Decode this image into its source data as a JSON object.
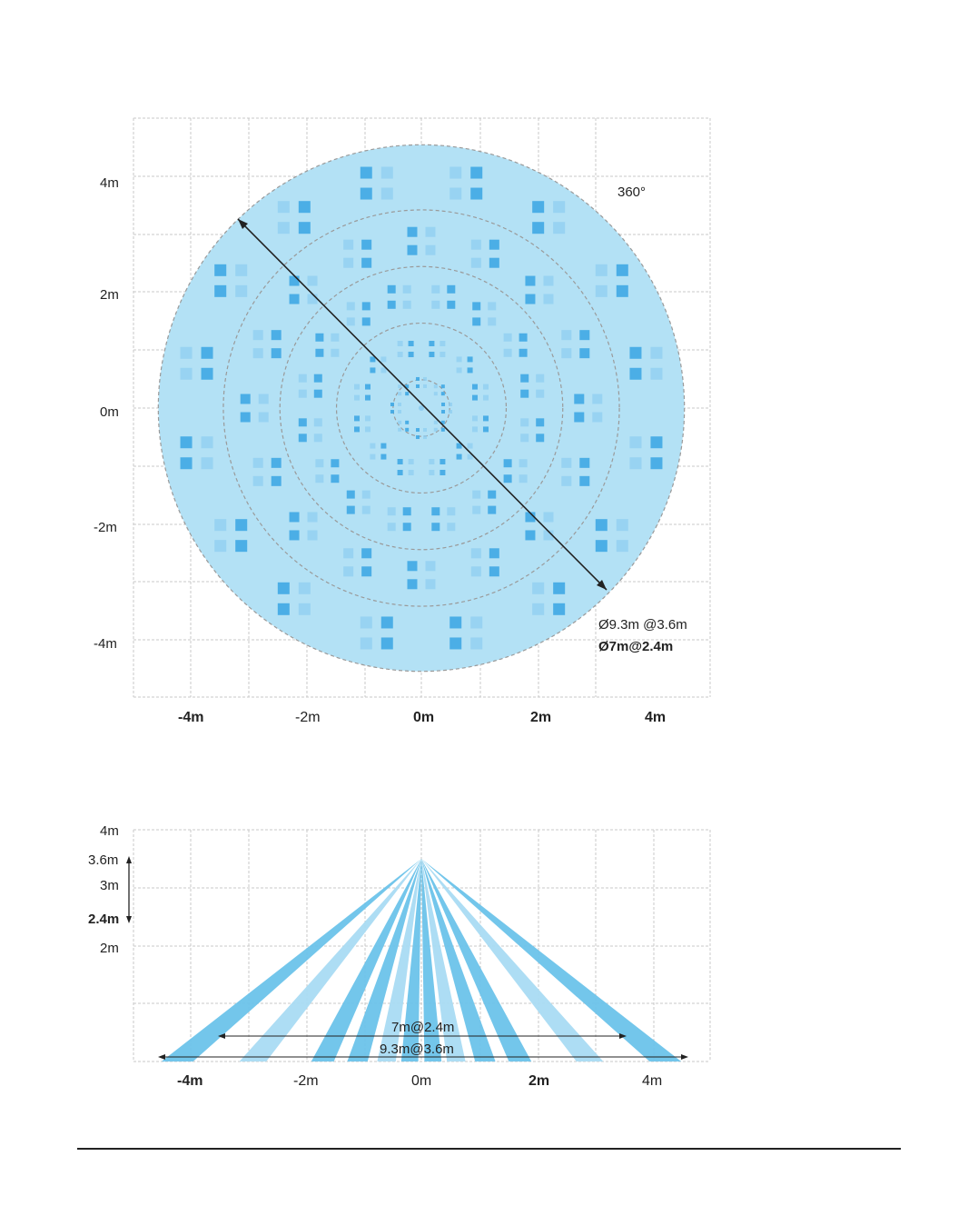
{
  "top_view": {
    "y_labels": [
      "4m",
      "2m",
      "0m",
      "-2m",
      "-4m"
    ],
    "x_labels": [
      "-4m",
      "-2m",
      "0m",
      "2m",
      "4m"
    ],
    "angle_label": "360°",
    "spec_line_1": "Ø9.3m @3.6m",
    "spec_line_2": "Ø7m@2.4m",
    "coverage_diameter_m": 9.3,
    "ring_diameters_m": [
      7,
      5,
      3,
      1
    ],
    "colors": {
      "coverage": "#b3e1f5",
      "zone_dark": "#3fa9e4",
      "zone_light": "#8fcdf0",
      "grid": "#c8c8c8",
      "ring": "#9a9a9a"
    }
  },
  "side_view": {
    "y_labels": [
      "4m",
      "3.6m",
      "3m",
      "2.4m",
      "2m"
    ],
    "x_labels": [
      "-4m",
      "-2m",
      "0m",
      "2m",
      "4m"
    ],
    "span_label_1": "7m@2.4m",
    "span_label_2": "9.3m@3.6m",
    "mount_height_m": 3.6,
    "beams": [
      {
        "x_m": -4.2,
        "tone": "dark"
      },
      {
        "x_m": -2.9,
        "tone": "light"
      },
      {
        "x_m": -1.7,
        "tone": "dark"
      },
      {
        "x_m": -0.6,
        "tone": "light"
      },
      {
        "x_m": 0.6,
        "tone": "light"
      },
      {
        "x_m": 1.7,
        "tone": "dark"
      },
      {
        "x_m": 2.9,
        "tone": "light"
      },
      {
        "x_m": 4.2,
        "tone": "dark"
      },
      {
        "x_m": -1.1,
        "tone": "dark"
      },
      {
        "x_m": 1.1,
        "tone": "dark"
      },
      {
        "x_m": -0.2,
        "tone": "dark"
      },
      {
        "x_m": 0.2,
        "tone": "dark"
      }
    ],
    "colors": {
      "dark": "#6cc3ea",
      "light": "#a9dbf3",
      "grid": "#c8c8c8"
    }
  }
}
